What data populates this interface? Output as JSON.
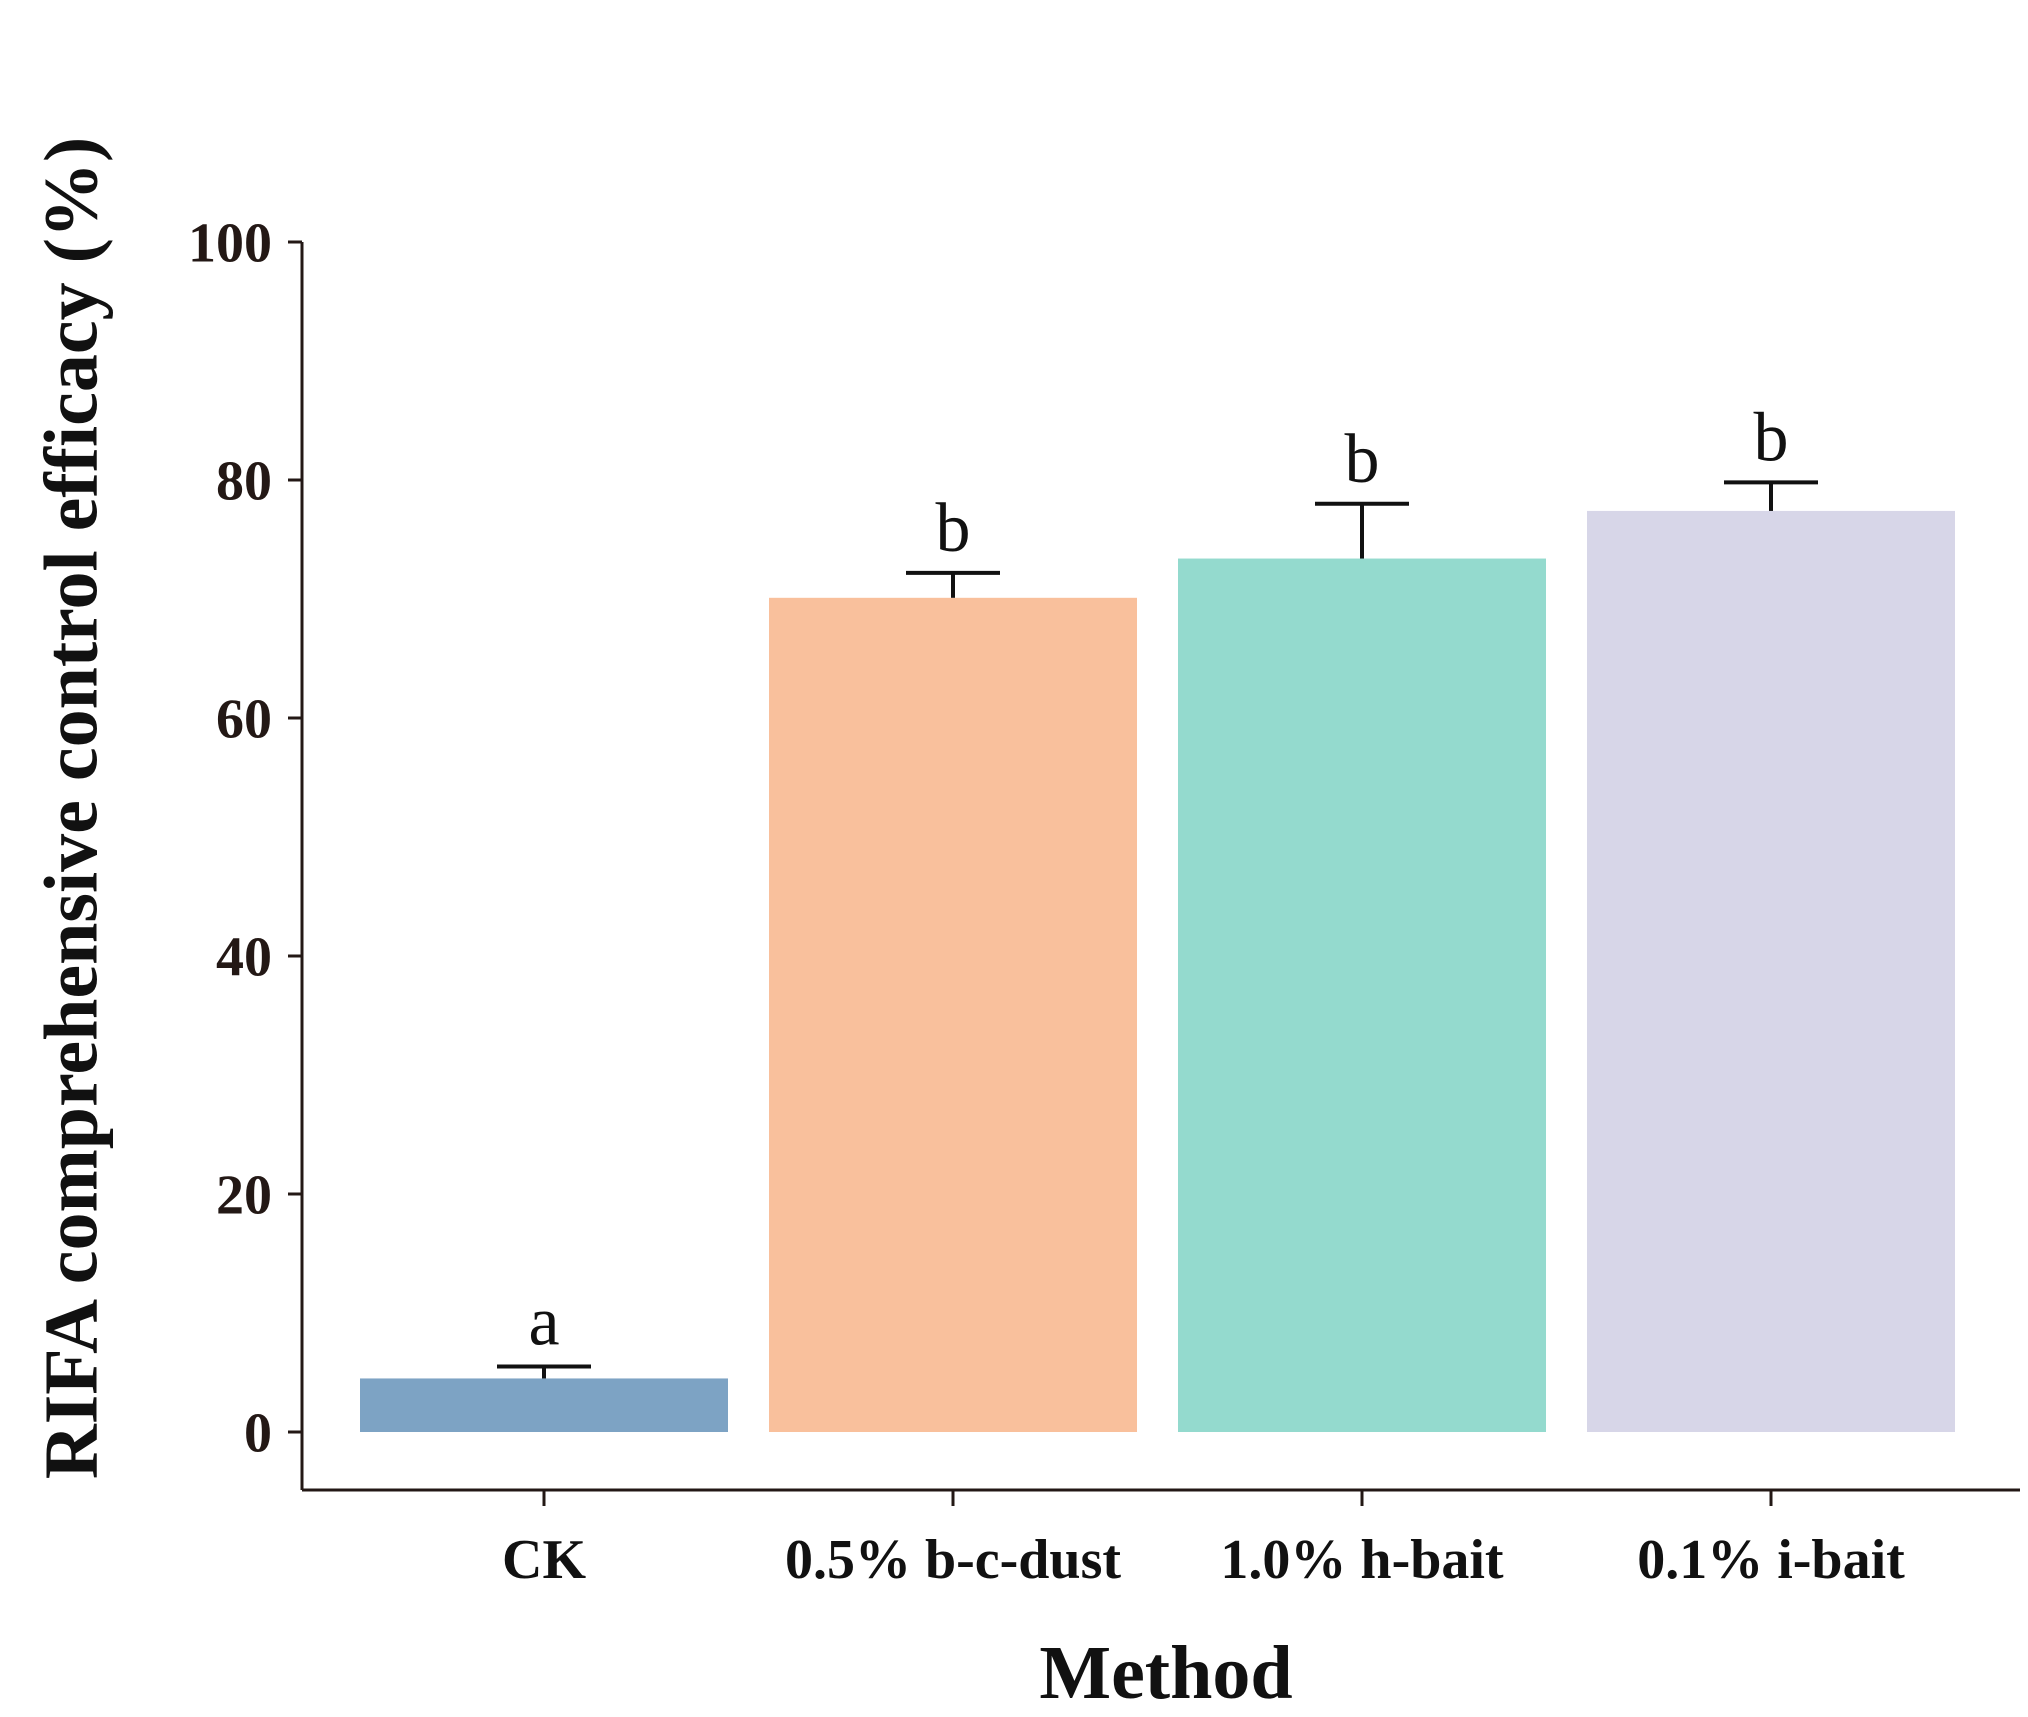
{
  "chart_data": {
    "type": "bar",
    "xlabel": "Method",
    "ylabel": "RIFA comprehensive control efficacy (%)",
    "ylim": [
      0,
      100
    ],
    "yticks": [
      0,
      20,
      40,
      60,
      80,
      100
    ],
    "grid": false,
    "categories": [
      "CK",
      "0.5% b-c-dust",
      "1.0% h-bait",
      "0.1% i-bait"
    ],
    "values": [
      4.5,
      70.1,
      73.4,
      77.4
    ],
    "error_upper": [
      1.0,
      2.1,
      4.6,
      2.4
    ],
    "significance": [
      "a",
      "b",
      "b",
      "b"
    ],
    "colors": [
      "#7da3c4",
      "#f9c09c",
      "#94dace",
      "#d7d6e8"
    ]
  }
}
